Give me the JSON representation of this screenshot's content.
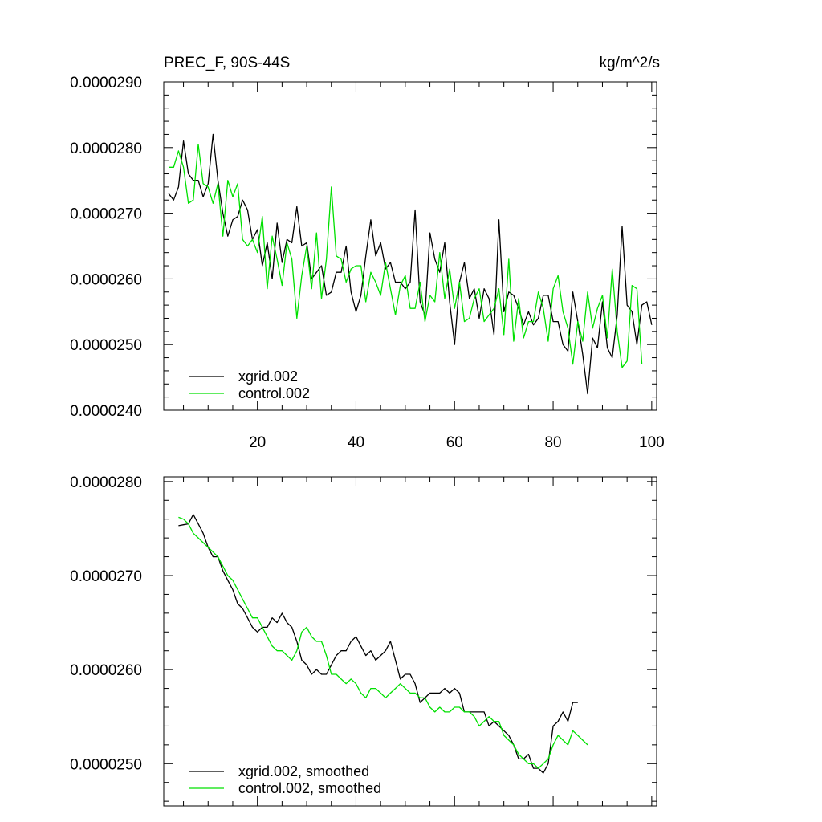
{
  "chart_data": [
    {
      "type": "line",
      "title_left": "PREC_F, 90S-44S",
      "title_right": "kg/m^2/s",
      "xlabel": "",
      "ylabel": "",
      "xlim": [
        1,
        101
      ],
      "ylim": [
        2.4e-05,
        2.9e-05
      ],
      "x_ticks": [
        20,
        40,
        60,
        80,
        100
      ],
      "x_tick_labels": [
        "20",
        "40",
        "60",
        "80",
        "100"
      ],
      "y_ticks": [
        2.4e-05,
        2.5e-05,
        2.6e-05,
        2.7e-05,
        2.8e-05,
        2.9e-05
      ],
      "y_tick_labels": [
        "0.0000240",
        "0.0000250",
        "0.0000260",
        "0.0000270",
        "0.0000280",
        "0.0000290"
      ],
      "legend_position": "bottom-left",
      "x_start": 2,
      "series": [
        {
          "name": "xgrid.002",
          "color": "#000000",
          "values": [
            27.3,
            27.2,
            27.4,
            28.1,
            27.6,
            27.5,
            27.5,
            27.25,
            27.45,
            28.2,
            27.5,
            27.0,
            26.65,
            26.9,
            26.95,
            27.2,
            27.05,
            26.6,
            26.75,
            26.2,
            26.55,
            26.0,
            26.85,
            26.25,
            26.6,
            26.55,
            27.1,
            26.5,
            26.55,
            26.0,
            26.1,
            26.2,
            25.75,
            25.8,
            26.1,
            26.1,
            26.5,
            25.8,
            25.5,
            25.75,
            26.35,
            26.9,
            26.35,
            26.55,
            26.15,
            26.25,
            25.95,
            25.95,
            25.85,
            25.95,
            27.05,
            25.65,
            25.45,
            26.7,
            26.3,
            26.1,
            26.55,
            25.65,
            25.0,
            25.95,
            26.25,
            25.7,
            25.85,
            25.4,
            25.85,
            25.7,
            25.15,
            26.9,
            25.5,
            25.8,
            25.75,
            25.55,
            25.3,
            25.5,
            25.3,
            25.4,
            25.75,
            25.75,
            25.35,
            25.35,
            25.0,
            24.9,
            25.8,
            25.35,
            24.85,
            24.25,
            25.1,
            24.95,
            25.65,
            24.95,
            24.8,
            25.45,
            26.8,
            25.6,
            25.5,
            25.0,
            25.6,
            25.65,
            25.3
          ]
        },
        {
          "name": "control.002",
          "color": "#00e000",
          "values": [
            27.7,
            27.7,
            27.95,
            27.7,
            27.15,
            27.2,
            28.05,
            27.45,
            27.4,
            27.15,
            27.45,
            26.65,
            27.5,
            27.25,
            27.45,
            26.6,
            26.5,
            26.6,
            26.4,
            26.95,
            25.85,
            26.65,
            26.3,
            25.9,
            26.55,
            26.3,
            25.4,
            26.05,
            26.5,
            25.85,
            26.7,
            25.7,
            26.3,
            27.4,
            26.35,
            26.3,
            25.95,
            26.15,
            26.2,
            26.2,
            25.65,
            26.1,
            25.95,
            25.75,
            26.25,
            25.85,
            25.45,
            25.9,
            26.05,
            25.55,
            25.55,
            25.95,
            25.35,
            25.75,
            25.65,
            26.4,
            25.7,
            26.15,
            25.55,
            25.95,
            25.35,
            25.4,
            25.7,
            25.85,
            25.35,
            25.45,
            25.55,
            25.85,
            25.15,
            26.3,
            25.05,
            25.7,
            25.1,
            25.35,
            25.35,
            25.8,
            25.55,
            25.05,
            25.85,
            26.05,
            25.5,
            25.25,
            24.7,
            25.35,
            25.05,
            25.8,
            25.25,
            25.55,
            25.75,
            25.1,
            26.15,
            25.2,
            24.65,
            24.75,
            25.9,
            25.85,
            24.7
          ]
        }
      ]
    },
    {
      "type": "line",
      "xlabel": "",
      "ylabel": "",
      "xlim": [
        1,
        101
      ],
      "ylim": [
        2.455e-05,
        2.805e-05
      ],
      "x_ticks": [
        20,
        40,
        60,
        80,
        100
      ],
      "y_ticks": [
        2.5e-05,
        2.6e-05,
        2.7e-05,
        2.8e-05
      ],
      "y_tick_labels": [
        "0.0000250",
        "0.0000260",
        "0.0000270",
        "0.0000280"
      ],
      "legend_position": "bottom-left",
      "x_start": 4,
      "series": [
        {
          "name": "xgrid.002, smoothed",
          "color": "#000000",
          "values": [
            27.53,
            27.54,
            27.55,
            27.65,
            27.55,
            27.45,
            27.3,
            27.2,
            27.2,
            27.05,
            26.95,
            26.85,
            26.7,
            26.65,
            26.55,
            26.45,
            26.4,
            26.45,
            26.45,
            26.55,
            26.5,
            26.6,
            26.5,
            26.45,
            26.3,
            26.1,
            26.05,
            25.95,
            26.0,
            25.95,
            25.95,
            26.05,
            26.15,
            26.2,
            26.2,
            26.3,
            26.35,
            26.25,
            26.15,
            26.2,
            26.1,
            26.15,
            26.2,
            26.3,
            26.1,
            25.9,
            25.95,
            25.95,
            25.85,
            25.65,
            25.7,
            25.75,
            25.75,
            25.75,
            25.8,
            25.75,
            25.8,
            25.75,
            25.55,
            25.55,
            25.55,
            25.55,
            25.55,
            25.4,
            25.45,
            25.4,
            25.35,
            25.3,
            25.2,
            25.05,
            25.05,
            25.1,
            24.95,
            24.95,
            24.9,
            25.0,
            25.4,
            25.45,
            25.55,
            25.45,
            25.65,
            25.65
          ]
        },
        {
          "name": "control.002, smoothed",
          "color": "#00e000",
          "values": [
            27.62,
            27.6,
            27.55,
            27.45,
            27.4,
            27.35,
            27.3,
            27.25,
            27.2,
            27.1,
            27.0,
            26.95,
            26.85,
            26.75,
            26.65,
            26.55,
            26.55,
            26.45,
            26.35,
            26.25,
            26.2,
            26.2,
            26.15,
            26.1,
            26.2,
            26.4,
            26.45,
            26.35,
            26.3,
            26.3,
            26.15,
            25.95,
            25.95,
            25.9,
            25.85,
            25.9,
            25.85,
            25.75,
            25.7,
            25.8,
            25.8,
            25.75,
            25.7,
            25.75,
            25.8,
            25.85,
            25.8,
            25.75,
            25.75,
            25.7,
            25.7,
            25.6,
            25.55,
            25.6,
            25.55,
            25.55,
            25.6,
            25.6,
            25.55,
            25.55,
            25.5,
            25.4,
            25.45,
            25.5,
            25.45,
            25.45,
            25.3,
            25.25,
            25.2,
            25.1,
            25.05,
            25.0,
            25.0,
            24.95,
            25.0,
            25.05,
            25.2,
            25.3,
            25.25,
            25.2,
            25.35,
            25.3,
            25.25,
            25.2
          ]
        }
      ]
    }
  ]
}
